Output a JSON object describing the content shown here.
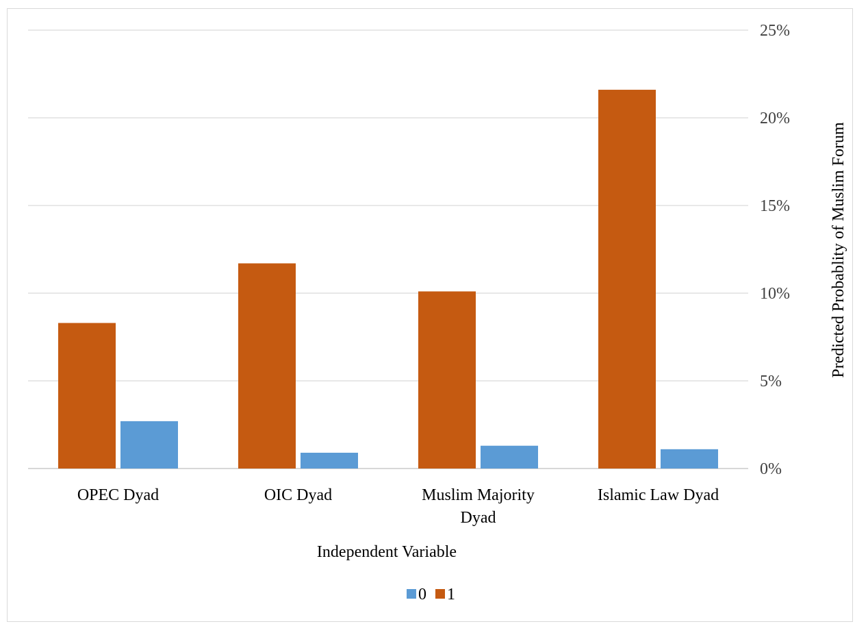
{
  "chart_data": {
    "type": "bar",
    "categories": [
      [
        "OPEC Dyad"
      ],
      [
        "OIC Dyad"
      ],
      [
        "Muslim Majority",
        "Dyad"
      ],
      [
        "Islamic Law Dyad"
      ]
    ],
    "series": [
      {
        "name": "1",
        "color": "#C55A11",
        "values": [
          8.3,
          11.7,
          10.1,
          21.6
        ]
      },
      {
        "name": "0",
        "color": "#5B9BD5",
        "values": [
          2.7,
          0.9,
          1.3,
          1.1
        ]
      }
    ],
    "legend_order": [
      "0",
      "1"
    ],
    "ylim": [
      0,
      25
    ],
    "yticks": [
      "0%",
      "5%",
      "10%",
      "15%",
      "20%",
      "25%"
    ],
    "xlabel": "Independent Variable",
    "ylabel": "Predicted Probablity of Muslim Forum",
    "y_axis_side": "right",
    "legend_position": "bottom",
    "grid": true,
    "gridline_color": "#D9D9D9"
  }
}
